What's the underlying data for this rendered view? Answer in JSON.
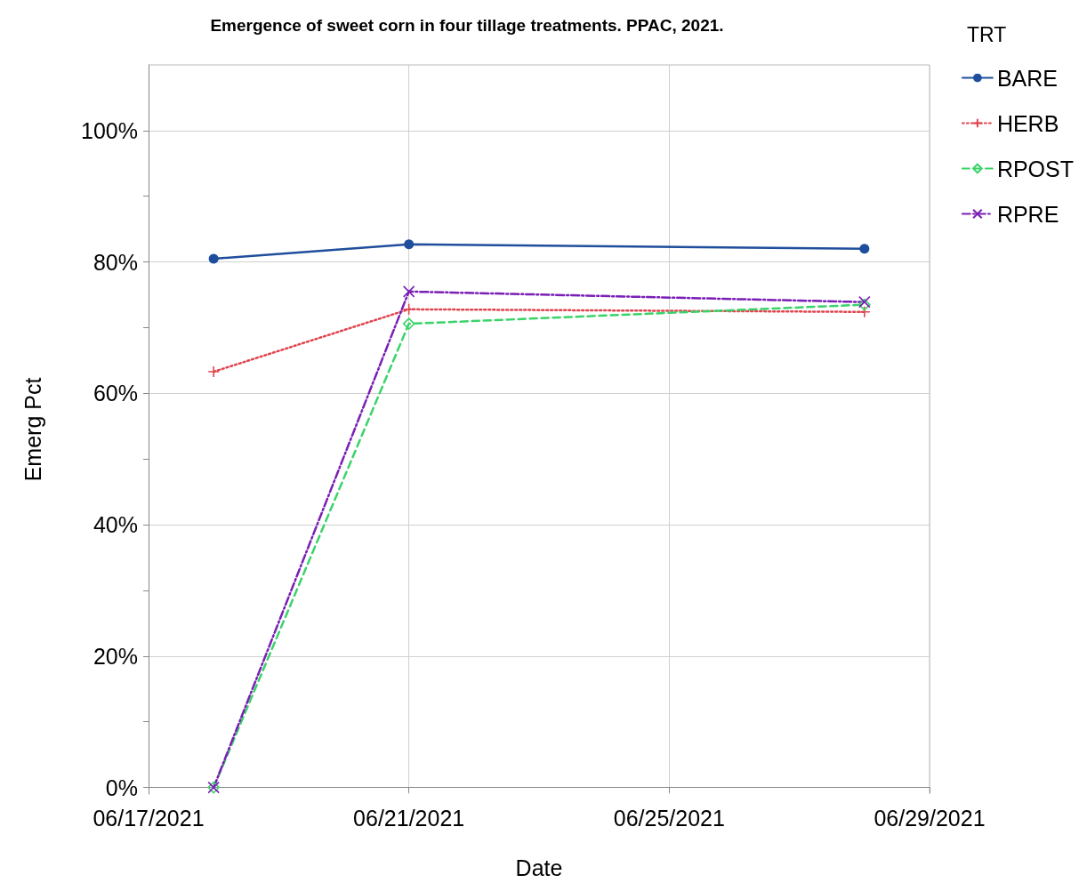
{
  "chart_data": {
    "type": "line",
    "title": "Emergence of sweet corn in four tillage treatments. PPAC, 2021.",
    "xlabel": "Date",
    "ylabel": "Emerg Pct",
    "legend_title": "TRT",
    "x": [
      "2021-06-18",
      "2021-06-21",
      "2021-06-28"
    ],
    "series": [
      {
        "name": "BARE",
        "color": "#1f4e9c",
        "values": [
          80.5,
          82.7,
          82.0
        ],
        "marker": "circle",
        "line_style": "solid"
      },
      {
        "name": "HERB",
        "color": "#e0454f",
        "values": [
          63.3,
          72.8,
          72.4
        ],
        "marker": "plus",
        "line_style": "dotted"
      },
      {
        "name": "RPOST",
        "color": "#3ad36a",
        "values": [
          0,
          70.6,
          73.5
        ],
        "marker": "diamond",
        "line_style": "dashed"
      },
      {
        "name": "RPRE",
        "color": "#7a1fb5",
        "values": [
          0,
          75.5,
          73.9
        ],
        "marker": "cross",
        "line_style": "dashdot"
      }
    ],
    "xlim": [
      "2021-06-17",
      "2021-06-29"
    ],
    "xticks": [
      {
        "value": "2021-06-17",
        "label": "06/17/2021"
      },
      {
        "value": "2021-06-21",
        "label": "06/21/2021"
      },
      {
        "value": "2021-06-25",
        "label": "06/25/2021"
      },
      {
        "value": "2021-06-29",
        "label": "06/29/2021"
      }
    ],
    "ylim": [
      -1,
      110
    ],
    "yticks": [
      {
        "value": 0,
        "label": "0%"
      },
      {
        "value": 10,
        "label": null
      },
      {
        "value": 20,
        "label": "20%"
      },
      {
        "value": 30,
        "label": null
      },
      {
        "value": 40,
        "label": "40%"
      },
      {
        "value": 50,
        "label": null
      },
      {
        "value": 60,
        "label": "60%"
      },
      {
        "value": 70,
        "label": null
      },
      {
        "value": 80,
        "label": "80%"
      },
      {
        "value": 90,
        "label": null
      },
      {
        "value": 100,
        "label": "100%"
      }
    ],
    "grid": true,
    "legend": "top right"
  }
}
